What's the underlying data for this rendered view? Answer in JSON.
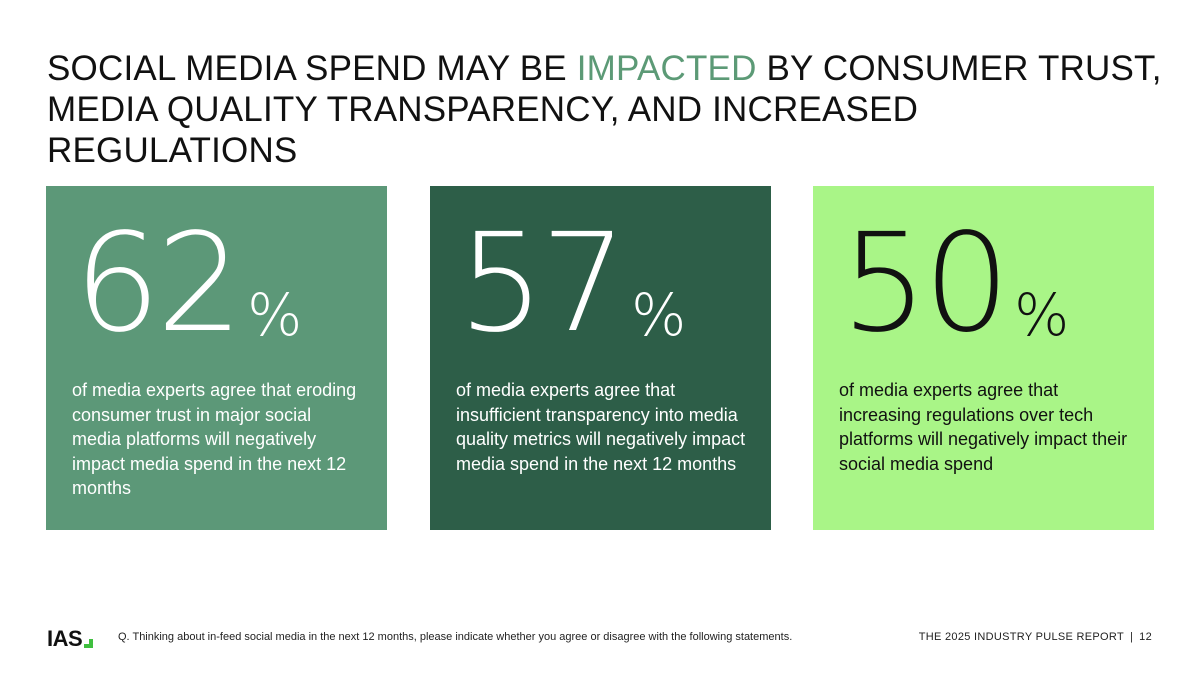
{
  "title": {
    "part1": "SOCIAL MEDIA SPEND MAY BE ",
    "accent": "IMPACTED",
    "part2": " BY CONSUMER TRUST, MEDIA QUALITY TRANSPARENCY, AND INCREASED REGULATIONS"
  },
  "cards": [
    {
      "value": "62",
      "unit": "%",
      "text": "of media experts agree that eroding consumer trust in major social media platforms will negatively impact media spend in the next 12 months"
    },
    {
      "value": "57",
      "unit": "%",
      "text": "of media experts agree that insufficient transparency into media quality metrics will negatively impact media spend in the next 12 months"
    },
    {
      "value": "50",
      "unit": "%",
      "text": "of media experts agree that increasing regulations over tech platforms will negatively impact their social media spend"
    }
  ],
  "footer": {
    "logo": "IAS",
    "question": "Q. Thinking about in-feed social media in the next 12 months, please indicate whether you agree or disagree with the following statements.",
    "report": "THE 2025 INDUSTRY PULSE REPORT",
    "separator": "|",
    "page": "12"
  },
  "colors": {
    "accent": "#5c9a76",
    "card1": "#5c9878",
    "card2": "#2d5e48",
    "card3": "#a9f587"
  }
}
